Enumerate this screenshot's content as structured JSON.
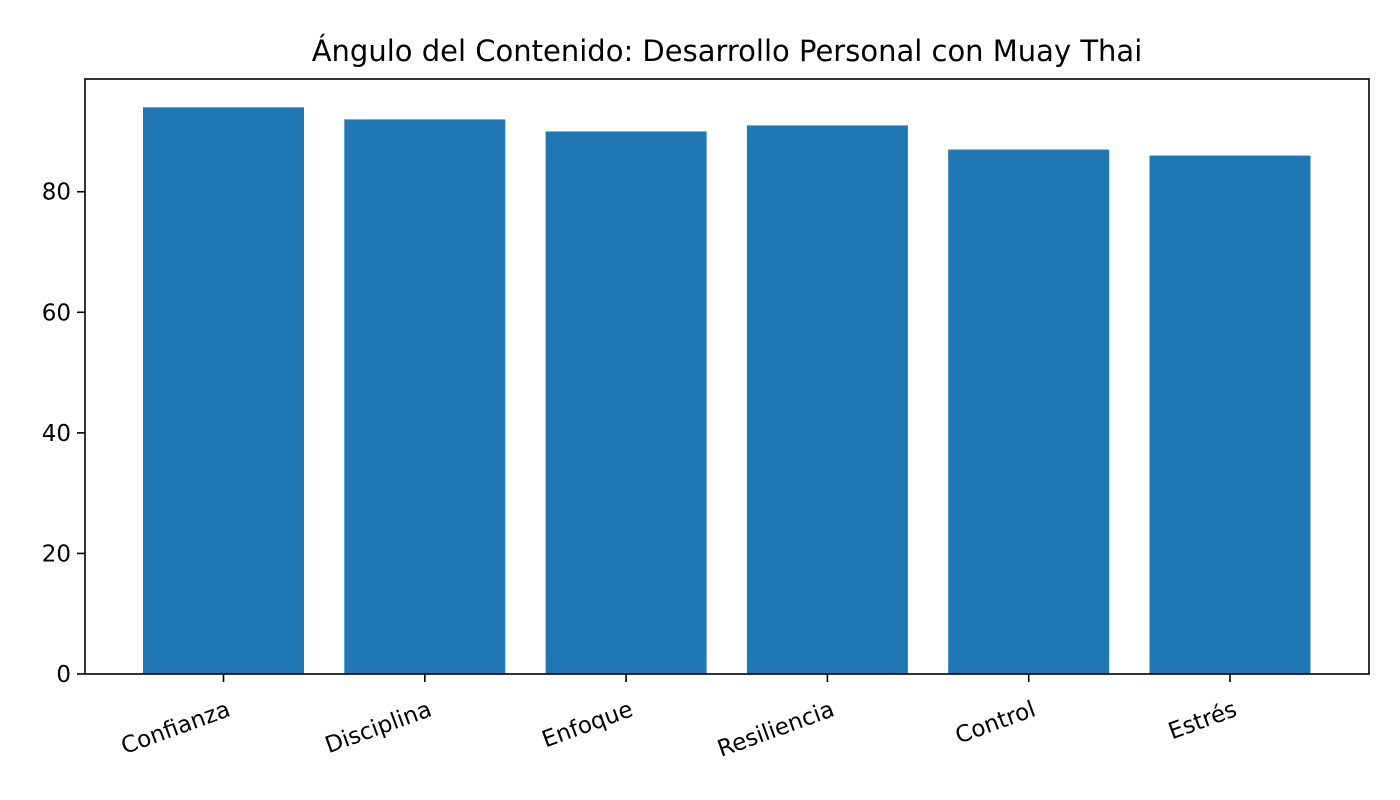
{
  "chart_data": {
    "type": "bar",
    "title": "Ángulo del Contenido: Desarrollo Personal con Muay Thai",
    "xlabel": "",
    "ylabel": "",
    "categories": [
      "Confianza",
      "Disciplina",
      "Enfoque",
      "Resiliencia",
      "Control",
      "Estrés"
    ],
    "values": [
      94,
      92,
      90,
      91,
      87,
      86
    ],
    "yticks": [
      0,
      20,
      40,
      60,
      80
    ],
    "ylim": [
      0,
      98.7
    ],
    "grid": false,
    "legend": "none",
    "bar_color": "#1f77b4",
    "xtick_rotation": -20
  }
}
